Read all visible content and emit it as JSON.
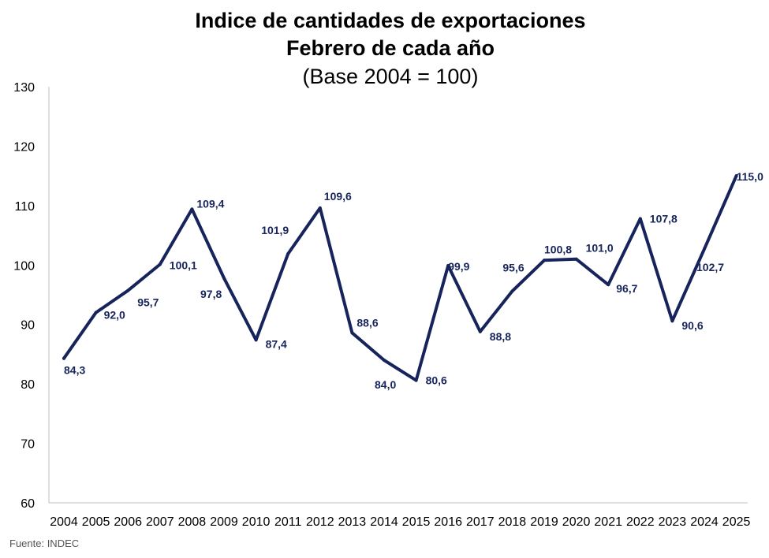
{
  "chart_data": {
    "type": "line",
    "title": "Indice de cantidades de exportaciones",
    "subtitle": "Febrero de cada año",
    "subtitle2": "(Base 2004 = 100)",
    "source": "Fuente: INDEC",
    "ylim": [
      60,
      130
    ],
    "yticks": [
      "60",
      "70",
      "80",
      "90",
      "100",
      "110",
      "120",
      "130"
    ],
    "grid": false,
    "line_color": "#16245b",
    "categories": [
      "2004",
      "2005",
      "2006",
      "2007",
      "2008",
      "2009",
      "2010",
      "2011",
      "2012",
      "2013",
      "2014",
      "2015",
      "2016",
      "2017",
      "2018",
      "2019",
      "2020",
      "2021",
      "2022",
      "2023",
      "2024",
      "2025"
    ],
    "values": [
      84.3,
      92.0,
      95.7,
      100.1,
      109.4,
      97.8,
      87.4,
      101.9,
      109.6,
      88.6,
      84.0,
      80.6,
      99.9,
      88.8,
      95.6,
      100.8,
      101.0,
      96.7,
      107.8,
      90.6,
      102.7,
      115.0
    ],
    "labels": [
      "84,3",
      "92,0",
      "95,7",
      "100,1",
      "109,4",
      "97,8",
      "87,4",
      "101,9",
      "109,6",
      "88,6",
      "84,0",
      "80,6",
      "99,9",
      "88,8",
      "95,6",
      "100,8",
      "101,0",
      "96,7",
      "107,8",
      "90,6",
      "102,7",
      "115,0"
    ]
  }
}
